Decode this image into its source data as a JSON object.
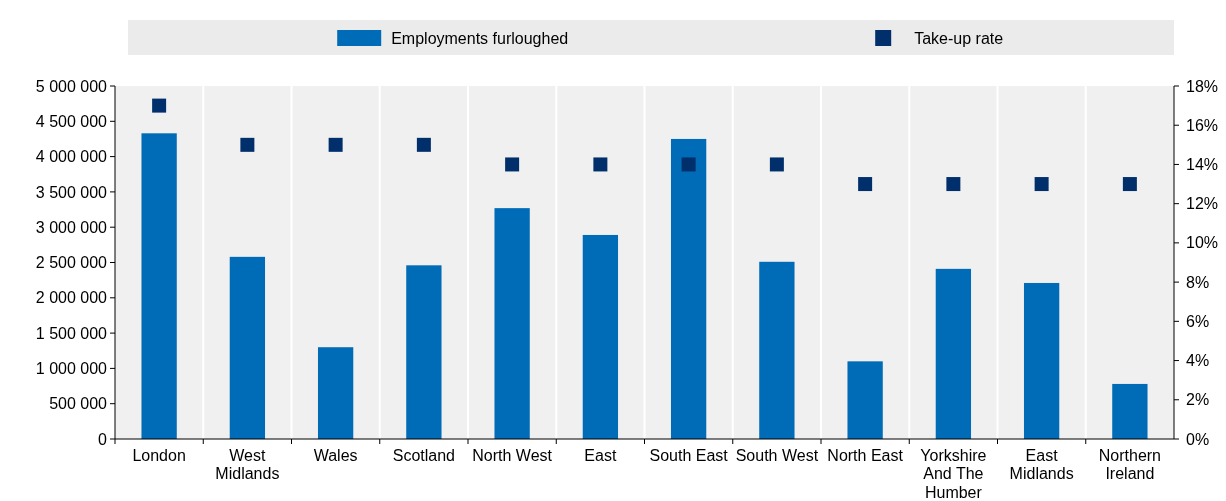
{
  "chart_data": {
    "type": "bar",
    "categories": [
      "London",
      "West Midlands",
      "Wales",
      "Scotland",
      "North West",
      "East",
      "South East",
      "South West",
      "North East",
      "Yorkshire And The Humber",
      "East Midlands",
      "Northern Ireland"
    ],
    "series": [
      {
        "name": "Employments furloughed",
        "color": "#006bb6",
        "values": [
          4330000,
          2580000,
          1300000,
          2460000,
          3270000,
          2890000,
          4250000,
          2510000,
          1100000,
          2410000,
          2210000,
          780000
        ]
      },
      {
        "name": "Take-up rate",
        "type": "scatter",
        "axis": "y2",
        "color": "#002f6c",
        "values": [
          17,
          15,
          15,
          15,
          14,
          14,
          14,
          14,
          13,
          13,
          13,
          13
        ]
      }
    ],
    "ylim": [
      0,
      5000000
    ],
    "yticks": [
      {
        "value": 0,
        "label": "0"
      },
      {
        "value": 500000,
        "label": "500 000"
      },
      {
        "value": 1000000,
        "label": "1 000 000"
      },
      {
        "value": 1500000,
        "label": "1 500 000"
      },
      {
        "value": 2000000,
        "label": "2 000 000"
      },
      {
        "value": 2500000,
        "label": "2 500 000"
      },
      {
        "value": 3000000,
        "label": "3 000 000"
      },
      {
        "value": 3500000,
        "label": "3 500 000"
      },
      {
        "value": 4000000,
        "label": "4 000 000"
      },
      {
        "value": 4500000,
        "label": "4 500 000"
      },
      {
        "value": 5000000,
        "label": "5 000 000"
      }
    ],
    "y2lim": [
      0,
      18
    ],
    "y2ticks": [
      {
        "value": 0,
        "label": "0%"
      },
      {
        "value": 2,
        "label": "2%"
      },
      {
        "value": 4,
        "label": "4%"
      },
      {
        "value": 6,
        "label": "6%"
      },
      {
        "value": 8,
        "label": "8%"
      },
      {
        "value": 10,
        "label": "10%"
      },
      {
        "value": 12,
        "label": "12%"
      },
      {
        "value": 14,
        "label": "14%"
      },
      {
        "value": 16,
        "label": "16%"
      },
      {
        "value": 18,
        "label": "18%"
      }
    ],
    "marker": "square",
    "grid": "x",
    "legend": "top"
  }
}
